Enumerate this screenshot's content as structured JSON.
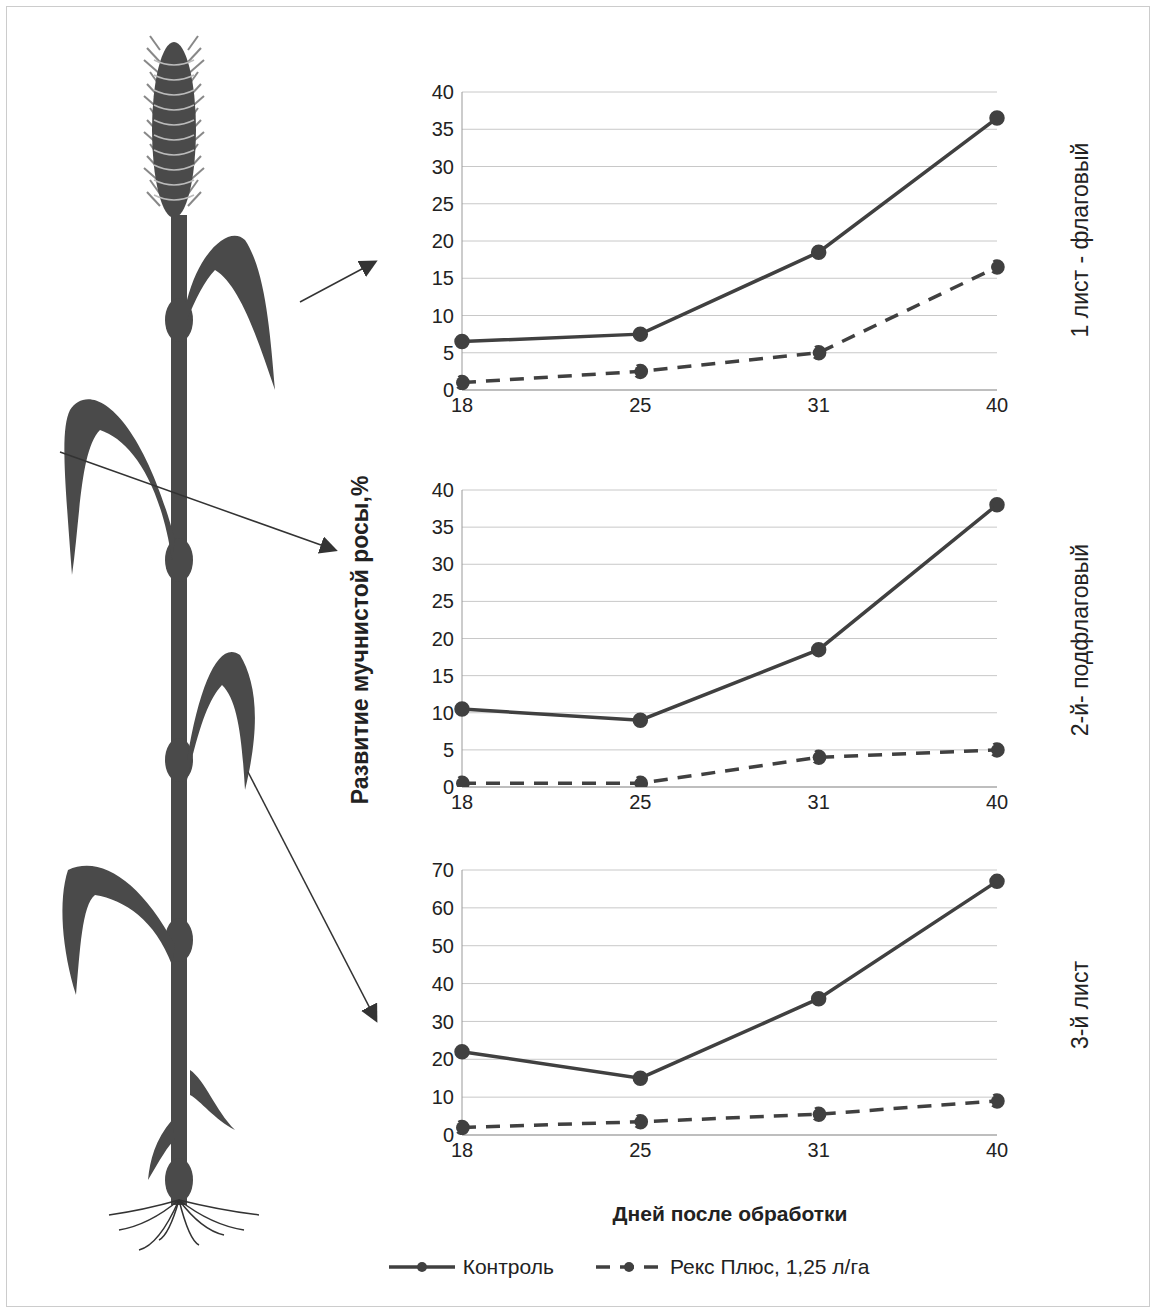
{
  "chart_data": [
    {
      "type": "line",
      "title": "1 лист - флаговый",
      "categories": [
        "18",
        "25",
        "31",
        "40"
      ],
      "series": [
        {
          "name": "Контроль",
          "color": "#404040",
          "line_style": "solid",
          "marker": "circle",
          "values": [
            6.5,
            7.5,
            18.5,
            36.5
          ]
        },
        {
          "name": "Рекс Плюс, 1,25 л/га",
          "color": "#404040",
          "line_style": "dashed",
          "marker": "circle",
          "values": [
            1,
            2.5,
            5,
            16.5
          ]
        }
      ],
      "ylim": [
        0,
        40
      ],
      "yticks": [
        0,
        5,
        10,
        15,
        20,
        25,
        30,
        35,
        40
      ],
      "grid": true
    },
    {
      "type": "line",
      "title": "2-й- подфлаговый",
      "ylabel": "Развитие мучнистой росы,%",
      "categories": [
        "18",
        "25",
        "31",
        "40"
      ],
      "series": [
        {
          "name": "Контроль",
          "color": "#404040",
          "line_style": "solid",
          "marker": "circle",
          "values": [
            10.5,
            9,
            18.5,
            38
          ]
        },
        {
          "name": "Рекс Плюс, 1,25 л/га",
          "color": "#404040",
          "line_style": "dashed",
          "marker": "circle",
          "values": [
            0.5,
            0.5,
            4,
            5
          ]
        }
      ],
      "ylim": [
        0,
        40
      ],
      "yticks": [
        0,
        5,
        10,
        15,
        20,
        25,
        30,
        35,
        40
      ],
      "grid": true
    },
    {
      "type": "line",
      "title": "3-й лист",
      "xlabel": "Дней после обработки",
      "categories": [
        "18",
        "25",
        "31",
        "40"
      ],
      "series": [
        {
          "name": "Контроль",
          "color": "#404040",
          "line_style": "solid",
          "marker": "circle",
          "values": [
            22,
            15,
            36,
            67
          ]
        },
        {
          "name": "Рекс Плюс, 1,25 л/га",
          "color": "#404040",
          "line_style": "dashed",
          "marker": "circle",
          "values": [
            2,
            3.5,
            5.5,
            9
          ]
        }
      ],
      "ylim": [
        0,
        70
      ],
      "yticks": [
        0,
        10,
        20,
        30,
        40,
        50,
        60,
        70
      ],
      "grid": true,
      "legend": "bottom"
    }
  ]
}
